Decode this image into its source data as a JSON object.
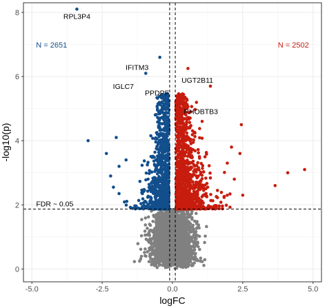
{
  "chart_data": {
    "type": "scatter",
    "title": "",
    "xlabel": "logFC",
    "ylabel": "-log10(p)",
    "xlim": [
      -5.3,
      5.3
    ],
    "ylim": [
      -0.4,
      8.3
    ],
    "x_ticks": [
      -5.0,
      -2.5,
      0.0,
      2.5,
      5.0
    ],
    "x_tick_labels": [
      "-5.0",
      "-2.5",
      "0.0",
      "2.5",
      "5.0"
    ],
    "y_ticks": [
      0,
      2,
      4,
      6,
      8
    ],
    "y_tick_labels": [
      "0",
      "2",
      "4",
      "6",
      "8"
    ],
    "grid": true,
    "colors": {
      "down": "#124f8c",
      "up": "#c71d0e",
      "ns": "#808080"
    },
    "thresholds": {
      "vlines_logFC": [
        -0.1,
        0.1
      ],
      "hline_neglog10p": 1.87,
      "hline_label": "FDR ~ 0.05"
    },
    "group_counts": [
      {
        "text": "N = 2651",
        "group": "down",
        "x": -4.3,
        "y": 6.9
      },
      {
        "text": "N = 2502",
        "group": "up",
        "x": 4.3,
        "y": 6.9
      }
    ],
    "highlighted_points": [
      {
        "x": -3.4,
        "y": 8.1,
        "group": "down"
      },
      {
        "x": -2.0,
        "y": 4.1,
        "group": "down"
      },
      {
        "x": -3.0,
        "y": 4.0,
        "group": "down"
      },
      {
        "x": -2.35,
        "y": 3.6,
        "group": "down"
      },
      {
        "x": -1.9,
        "y": 2.35,
        "group": "down"
      },
      {
        "x": -1.9,
        "y": 3.2,
        "group": "down"
      },
      {
        "x": -2.2,
        "y": 2.9,
        "group": "down"
      },
      {
        "x": -2.1,
        "y": 2.55,
        "group": "down"
      },
      {
        "x": -1.65,
        "y": 3.4,
        "group": "down"
      },
      {
        "x": -0.95,
        "y": 6.1,
        "group": "down"
      },
      {
        "x": -0.45,
        "y": 6.6,
        "group": "down"
      },
      {
        "x": 0.55,
        "y": 6.25,
        "group": "up"
      },
      {
        "x": 1.35,
        "y": 5.7,
        "group": "up"
      },
      {
        "x": 2.45,
        "y": 4.5,
        "group": "up"
      },
      {
        "x": 4.7,
        "y": 3.1,
        "group": "up"
      },
      {
        "x": 4.1,
        "y": 3.0,
        "group": "up"
      },
      {
        "x": 3.65,
        "y": 2.6,
        "group": "up"
      },
      {
        "x": 2.4,
        "y": 3.6,
        "group": "up"
      },
      {
        "x": 2.2,
        "y": 2.8,
        "group": "up"
      },
      {
        "x": 1.95,
        "y": 3.3,
        "group": "up"
      },
      {
        "x": 2.5,
        "y": 2.3,
        "group": "up"
      },
      {
        "x": 1.6,
        "y": 2.45,
        "group": "up"
      },
      {
        "x": 2.1,
        "y": 3.8,
        "group": "up"
      }
    ],
    "annotations": [
      {
        "text": "RPL3P4",
        "x": -3.4,
        "y": 8.1,
        "anchor": "below"
      },
      {
        "text": "IFITM3",
        "x": -0.95,
        "y": 6.1,
        "anchor": "above-left"
      },
      {
        "text": "IGLC7",
        "x": -1.3,
        "y": 5.85,
        "anchor": "below-left"
      },
      {
        "text": "PPDPF",
        "x": -0.22,
        "y": 5.3,
        "anchor": "above-left"
      },
      {
        "text": "UGT2B11",
        "x": 1.35,
        "y": 5.7,
        "anchor": "above-left"
      },
      {
        "text": "RHOBTB3",
        "x": 0.55,
        "y": 5.05,
        "anchor": "below-right"
      }
    ],
    "series": [
      {
        "group": "down",
        "count": 2651
      },
      {
        "group": "up",
        "count": 2502
      }
    ]
  }
}
